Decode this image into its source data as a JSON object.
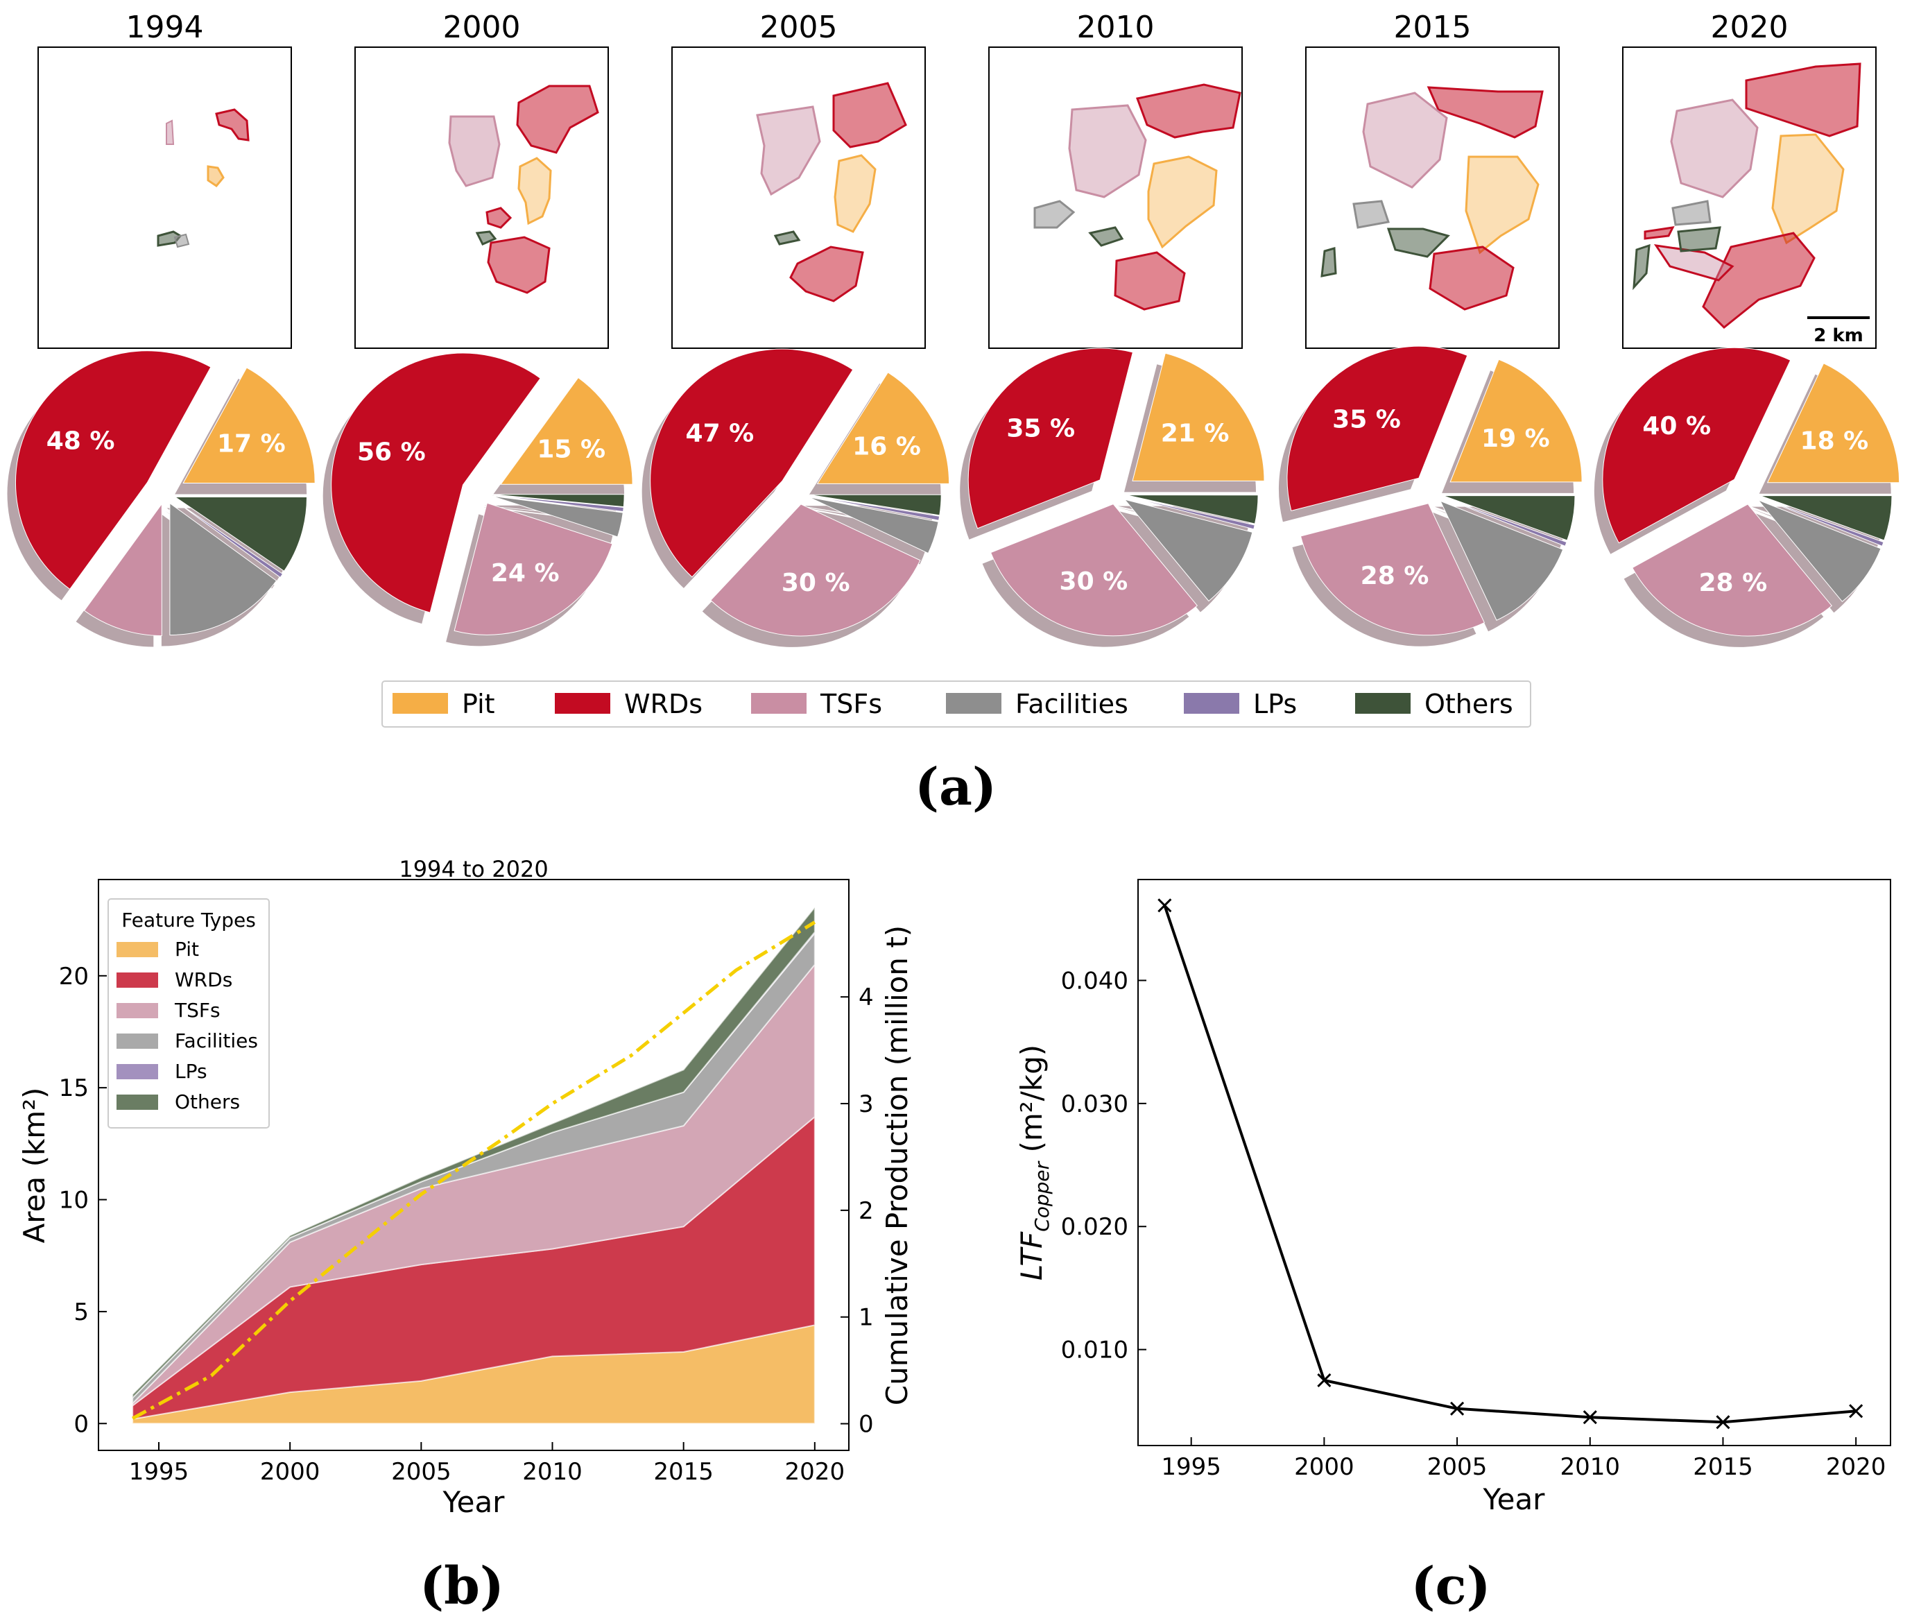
{
  "colors": {
    "Pit": "#f5ae46",
    "WRDs": "#c30b22",
    "TSFs": "#c98ea3",
    "Facilities": "#8e8e8e",
    "LPs": "#8a79ab",
    "Others": "#3e5339",
    "production_line": "#f5cf00",
    "ltf_line": "#000000"
  },
  "panel_a": {
    "caption": "(a)",
    "scale_bar": "2 km",
    "legend": [
      "Pit",
      "WRDs",
      "TSFs",
      "Facilities",
      "LPs",
      "Others"
    ],
    "chart_data": {
      "type": "pie",
      "categories": [
        "Pit",
        "WRDs",
        "TSFs",
        "Facilities",
        "LPs",
        "Others"
      ],
      "series": [
        {
          "name": "1994",
          "values": [
            17,
            48,
            10,
            15,
            0.5,
            9.5
          ],
          "labels": [
            "17 %",
            "48 %",
            "",
            "",
            "",
            ""
          ]
        },
        {
          "name": "2000",
          "values": [
            15,
            56,
            24,
            3,
            0.5,
            1.5
          ],
          "labels": [
            "15 %",
            "56 %",
            "24 %",
            "",
            "",
            ""
          ]
        },
        {
          "name": "2005",
          "values": [
            16,
            47,
            30,
            4,
            0.5,
            2.5
          ],
          "labels": [
            "16 %",
            "47 %",
            "30 %",
            "",
            "",
            ""
          ]
        },
        {
          "name": "2010",
          "values": [
            21,
            35,
            30,
            10,
            0.5,
            3.5
          ],
          "labels": [
            "21 %",
            "35 %",
            "30 %",
            "",
            "",
            ""
          ]
        },
        {
          "name": "2015",
          "values": [
            19,
            35,
            28,
            12,
            0.5,
            5.5
          ],
          "labels": [
            "19 %",
            "35 %",
            "28 %",
            "",
            "",
            ""
          ]
        },
        {
          "name": "2020",
          "values": [
            18,
            40,
            28,
            8,
            0.5,
            5.5
          ],
          "labels": [
            "18 %",
            "40 %",
            "28 %",
            "",
            "",
            ""
          ]
        }
      ]
    }
  },
  "panel_b": {
    "caption": "(b)",
    "chart_data": {
      "type": "area",
      "title": "1994 to 2020",
      "xlabel": "Year",
      "ylabel": "Area (km²)",
      "ylabel_right": "Cumulative Production (million t)",
      "x": [
        1994,
        2000,
        2005,
        2010,
        2015,
        2020
      ],
      "xticks": [
        1995,
        2000,
        2005,
        2010,
        2015,
        2020
      ],
      "yticks": [
        0,
        5,
        10,
        15,
        20
      ],
      "yticks_right": [
        0,
        1,
        2,
        3,
        4
      ],
      "xlim": [
        1992.7,
        2021.3
      ],
      "ylim": [
        -1.2,
        24.3
      ],
      "ylim_right": [
        -0.25,
        5.1
      ],
      "legend_title": "Feature Types",
      "series": [
        {
          "name": "Pit",
          "values": [
            0.2,
            1.4,
            1.9,
            3.0,
            3.2,
            4.4
          ]
        },
        {
          "name": "WRDs",
          "values": [
            0.6,
            4.7,
            5.2,
            4.8,
            5.6,
            9.3
          ]
        },
        {
          "name": "TSFs",
          "values": [
            0.1,
            2.0,
            3.4,
            4.1,
            4.5,
            6.8
          ]
        },
        {
          "name": "Facilities",
          "values": [
            0.25,
            0.2,
            0.3,
            1.1,
            1.5,
            1.4
          ]
        },
        {
          "name": "LPs",
          "values": [
            0.0,
            0.0,
            0.0,
            0.0,
            0.0,
            0.05
          ]
        },
        {
          "name": "Others",
          "values": [
            0.15,
            0.1,
            0.2,
            0.4,
            1.0,
            1.1
          ]
        }
      ],
      "production": {
        "name": "Cumulative Production",
        "x": [
          1994,
          1997,
          2000,
          2003,
          2005,
          2008,
          2010,
          2013,
          2015,
          2017,
          2020
        ],
        "values": [
          0.05,
          0.45,
          1.15,
          1.75,
          2.15,
          2.65,
          3.0,
          3.45,
          3.85,
          4.25,
          4.7
        ]
      }
    }
  },
  "panel_c": {
    "caption": "(c)",
    "chart_data": {
      "type": "line",
      "xlabel": "Year",
      "ylabel_main": "LTF",
      "ylabel_sub": "Copper",
      "ylabel_tail": " (m²/kg)",
      "x": [
        1994,
        2000,
        2005,
        2010,
        2015,
        2020
      ],
      "values": [
        0.0461,
        0.0075,
        0.0052,
        0.0045,
        0.0041,
        0.005
      ],
      "xticks": [
        1995,
        2000,
        2005,
        2010,
        2015,
        2020
      ],
      "yticks": [
        "0.010",
        "0.020",
        "0.030",
        "0.040"
      ],
      "xlim": [
        1993,
        2021.3
      ],
      "ylim": [
        0.0022,
        0.0482
      ]
    }
  }
}
